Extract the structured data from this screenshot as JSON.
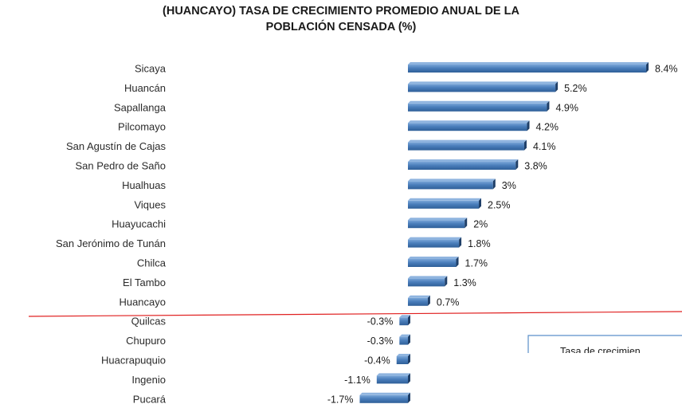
{
  "chart_data": {
    "type": "bar",
    "orientation": "horizontal",
    "title_lines": [
      "(HUANCAYO) TASA DE CRECIMIENTO PROMEDIO ANUAL DE LA",
      "POBLACIÓN CENSADA (%)"
    ],
    "categories": [
      "Sicaya",
      "Huancán",
      "Sapallanga",
      "Pilcomayo",
      "San Agustín de Cajas",
      "San Pedro de Saño",
      "Hualhuas",
      "Viques",
      "Huayucachi",
      "San Jerónimo de Tunán",
      "Chilca",
      "El Tambo",
      "Huancayo",
      "Quilcas",
      "Chupuro",
      "Huacrapuquio",
      "Ingenio",
      "Pucará"
    ],
    "values": [
      8.4,
      5.2,
      4.9,
      4.2,
      4.1,
      3.8,
      3,
      2.5,
      2,
      1.8,
      1.7,
      1.3,
      0.7,
      -0.3,
      -0.3,
      -0.4,
      -1.1,
      -1.7
    ],
    "value_labels": [
      "8.4%",
      "5.2%",
      "4.9%",
      "4.2%",
      "4.1%",
      "3.8%",
      "3%",
      "2.5%",
      "2%",
      "1.8%",
      "1.7%",
      "1.3%",
      "0.7%",
      "-0.3%",
      "-0.3%",
      "-0.4%",
      "-1.1%",
      "-1.7%"
    ],
    "bar_color": "#4a7ebb",
    "separator_color": "#e02020",
    "legend_text": "Tasa de crecimien",
    "grid": false
  }
}
